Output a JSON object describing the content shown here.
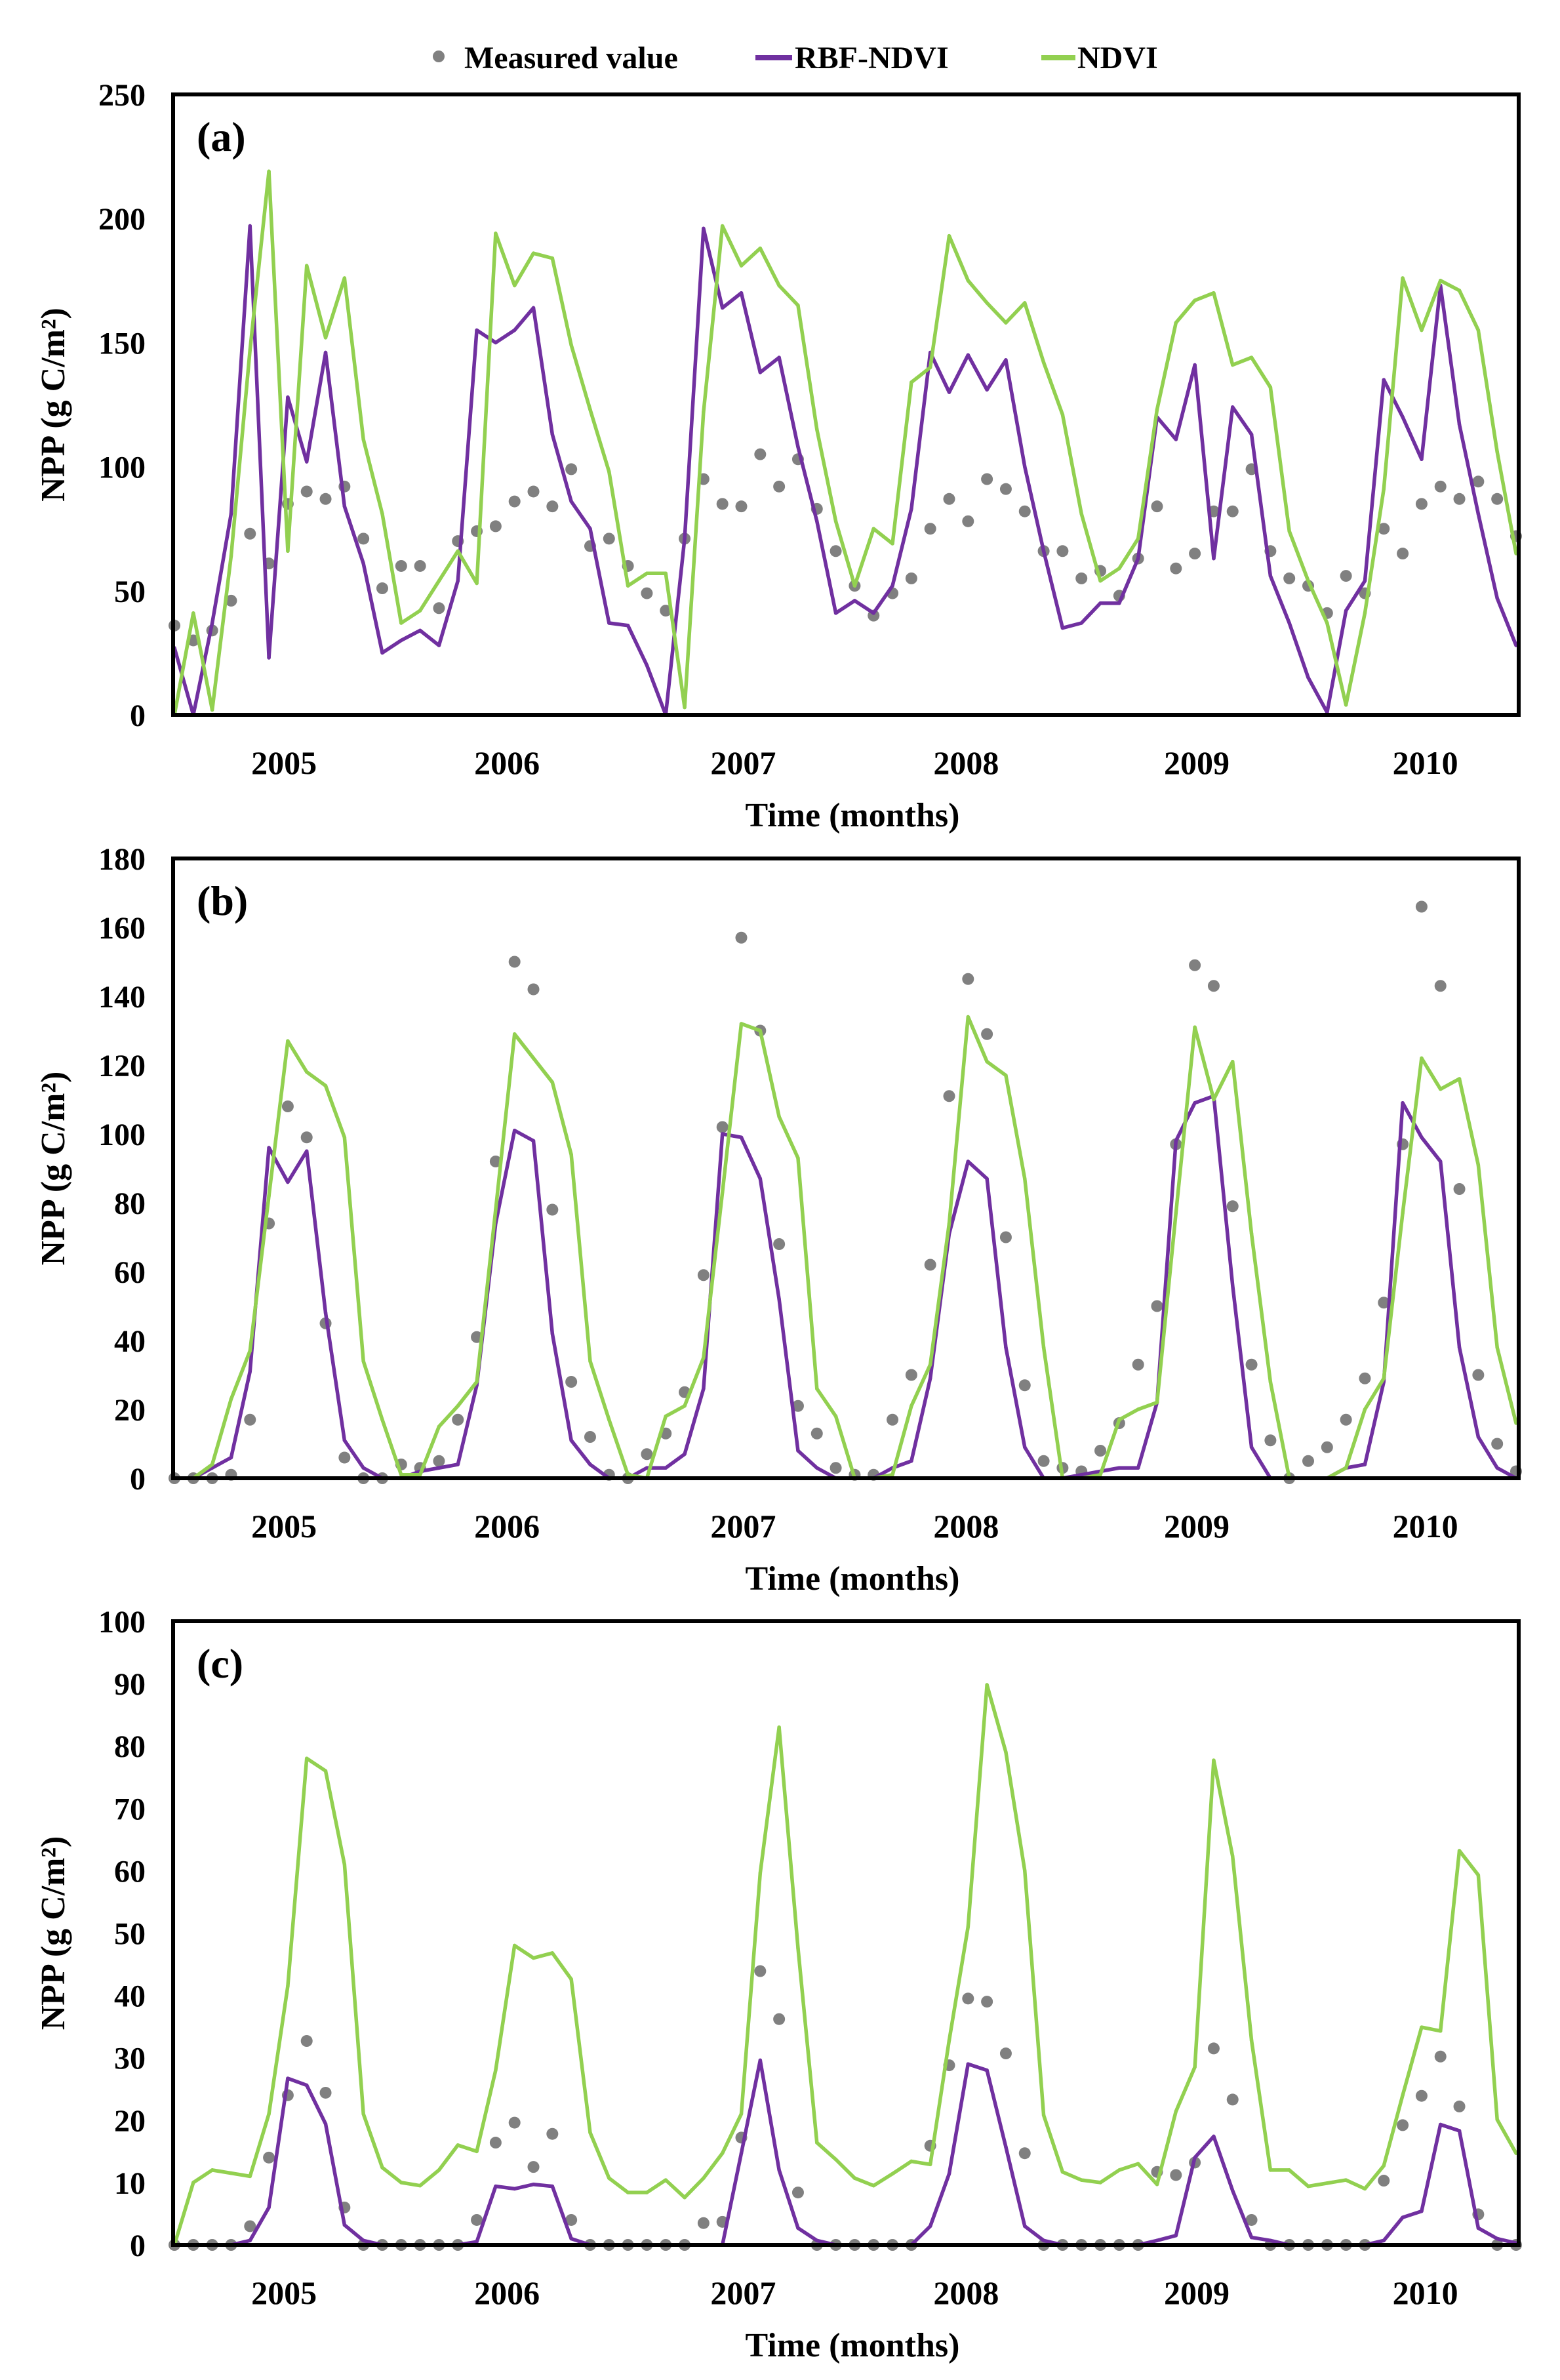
{
  "legend": {
    "measured": "Measured value",
    "rbf": "RBF-NDVI",
    "ndvi": "NDVI"
  },
  "colors": {
    "measured": "#808080",
    "rbf": "#7030A0",
    "ndvi": "#92D050"
  },
  "chart_data": [
    {
      "type": "line",
      "panel_label": "(a)",
      "title": "",
      "xlabel": "Time (months)",
      "ylabel": "NPP (g C/m²)",
      "ylim": [
        0,
        250
      ],
      "yticks": [
        0,
        50,
        100,
        150,
        200,
        250
      ],
      "x_tick_labels": [
        "2005",
        "2006",
        "2007",
        "2008",
        "2009",
        "2010"
      ],
      "grid": false,
      "legend_position": "top-center",
      "n_months": 72,
      "series": [
        {
          "name": "Measured value",
          "style": "scatter",
          "values": [
            36,
            30,
            34,
            46,
            73,
            61,
            85,
            90,
            87,
            92,
            71,
            51,
            60,
            60,
            43,
            70,
            74,
            76,
            86,
            90,
            84,
            99,
            68,
            71,
            60,
            49,
            42,
            71,
            95,
            85,
            84,
            105,
            92,
            103,
            83,
            66,
            52,
            40,
            49,
            55,
            75,
            87,
            78,
            95,
            91,
            82,
            66,
            66,
            55,
            58,
            48,
            63,
            84,
            59,
            65,
            82,
            82,
            99,
            66,
            55,
            52,
            41,
            56,
            49,
            75,
            65,
            85,
            92,
            87,
            94,
            87,
            72
          ]
        },
        {
          "name": "RBF-NDVI",
          "style": "line",
          "values": [
            27,
            0,
            37,
            81,
            197,
            23,
            128,
            102,
            146,
            84,
            61,
            25,
            30,
            34,
            28,
            54,
            155,
            150,
            155,
            164,
            113,
            86,
            75,
            37,
            36,
            20,
            0,
            71,
            196,
            164,
            170,
            138,
            144,
            108,
            78,
            41,
            46,
            41,
            52,
            83,
            146,
            130,
            145,
            131,
            143,
            100,
            66,
            35,
            37,
            45,
            45,
            63,
            120,
            111,
            141,
            63,
            124,
            113,
            56,
            37,
            15,
            1,
            42,
            54,
            135,
            120,
            103,
            173,
            117,
            81,
            47,
            28
          ]
        },
        {
          "name": "NDVI",
          "style": "line",
          "values": [
            0,
            41,
            2,
            64,
            147,
            219,
            66,
            181,
            152,
            176,
            111,
            81,
            37,
            42,
            54,
            66,
            53,
            194,
            173,
            186,
            184,
            149,
            123,
            98,
            52,
            57,
            57,
            3,
            122,
            197,
            181,
            188,
            173,
            165,
            115,
            78,
            52,
            75,
            69,
            134,
            140,
            193,
            175,
            166,
            158,
            166,
            142,
            121,
            81,
            54,
            59,
            71,
            123,
            158,
            167,
            170,
            141,
            144,
            132,
            74,
            54,
            37,
            4,
            41,
            91,
            176,
            155,
            175,
            171,
            155,
            106,
            65
          ]
        }
      ]
    },
    {
      "type": "line",
      "panel_label": "(b)",
      "title": "",
      "xlabel": "Time (months)",
      "ylabel": "NPP (g C/m²)",
      "ylim": [
        0,
        180
      ],
      "yticks": [
        0,
        20,
        40,
        60,
        80,
        100,
        120,
        140,
        160,
        180
      ],
      "x_tick_labels": [
        "2005",
        "2006",
        "2007",
        "2008",
        "2009",
        "2010"
      ],
      "grid": false,
      "n_months": 72,
      "series": [
        {
          "name": "Measured value",
          "style": "scatter",
          "values": [
            0,
            0,
            0,
            1,
            17,
            74,
            108,
            99,
            45,
            6,
            0,
            0,
            4,
            3,
            5,
            17,
            41,
            92,
            150,
            142,
            78,
            28,
            12,
            1,
            0,
            7,
            13,
            25,
            59,
            102,
            157,
            130,
            68,
            21,
            13,
            3,
            1,
            1,
            17,
            30,
            62,
            111,
            145,
            129,
            70,
            27,
            5,
            3,
            2,
            8,
            16,
            33,
            50,
            97,
            149,
            143,
            79,
            33,
            11,
            0,
            5,
            9,
            17,
            29,
            51,
            97,
            166,
            143,
            84,
            30,
            10,
            2
          ]
        },
        {
          "name": "RBF-NDVI",
          "style": "line",
          "values": [
            0,
            0,
            3,
            6,
            31,
            96,
            86,
            95,
            48,
            11,
            3,
            0,
            0,
            2,
            3,
            4,
            27,
            74,
            101,
            98,
            42,
            11,
            4,
            0,
            0,
            3,
            3,
            7,
            26,
            100,
            99,
            87,
            52,
            8,
            3,
            0,
            0,
            0,
            3,
            5,
            29,
            71,
            92,
            87,
            38,
            9,
            0,
            0,
            1,
            2,
            3,
            3,
            22,
            98,
            109,
            111,
            56,
            9,
            0,
            0,
            0,
            0,
            3,
            4,
            28,
            109,
            99,
            92,
            38,
            12,
            3,
            0
          ]
        },
        {
          "name": "NDVI",
          "style": "line",
          "values": [
            0,
            0,
            4,
            23,
            37,
            82,
            127,
            118,
            114,
            99,
            34,
            17,
            1,
            1,
            15,
            21,
            28,
            78,
            129,
            122,
            115,
            94,
            34,
            17,
            1,
            0,
            18,
            21,
            35,
            83,
            132,
            130,
            105,
            93,
            26,
            18,
            0,
            0,
            1,
            21,
            33,
            74,
            134,
            121,
            117,
            87,
            38,
            0,
            0,
            1,
            17,
            20,
            22,
            77,
            131,
            110,
            121,
            71,
            28,
            0,
            0,
            0,
            3,
            20,
            29,
            77,
            122,
            113,
            116,
            91,
            38,
            16
          ]
        }
      ]
    },
    {
      "type": "line",
      "panel_label": "(c)",
      "title": "",
      "xlabel": "Time (months)",
      "ylabel": "NPP (g C/m²)",
      "ylim": [
        0,
        100
      ],
      "yticks": [
        0,
        10,
        20,
        30,
        40,
        50,
        60,
        70,
        80,
        90,
        100
      ],
      "x_tick_labels": [
        "2005",
        "2006",
        "2007",
        "2008",
        "2009",
        "2010"
      ],
      "grid": false,
      "n_months": 72,
      "series": [
        {
          "name": "Measured value",
          "style": "scatter",
          "values": [
            0,
            0,
            0,
            0,
            3,
            14,
            24,
            32.7,
            24.4,
            6,
            0,
            0,
            0,
            0,
            0,
            0,
            4,
            16.4,
            19.6,
            12.5,
            17.8,
            4,
            0,
            0,
            0,
            0,
            0,
            0,
            3.5,
            3.7,
            17.2,
            43.9,
            36.2,
            8.4,
            0,
            0,
            0,
            0,
            0,
            0,
            15.9,
            28.8,
            39.5,
            39,
            30.7,
            14.7,
            0,
            0,
            0,
            0,
            0,
            0,
            11.7,
            11.2,
            13.2,
            31.5,
            23.3,
            4,
            0,
            0,
            0,
            0,
            0,
            0,
            10.3,
            19.2,
            23.9,
            30.2,
            22.2,
            4.9,
            0,
            0
          ]
        },
        {
          "name": "RBF-NDVI",
          "style": "line",
          "values": [
            0,
            0,
            0,
            0,
            0.7,
            6,
            26.7,
            25.6,
            19.4,
            3.2,
            0.7,
            0,
            0,
            0,
            0,
            0,
            0.5,
            9.4,
            9,
            9.7,
            9.4,
            1,
            0,
            0,
            0,
            0,
            0,
            0,
            0,
            0,
            14.7,
            29.6,
            12,
            2.7,
            0.7,
            0,
            0,
            0,
            0,
            0,
            3,
            11.4,
            29,
            28,
            15.7,
            3,
            0.7,
            0,
            0,
            0,
            0,
            0,
            0.7,
            1.5,
            14,
            17.4,
            8.7,
            1.2,
            0.7,
            0,
            0,
            0,
            0,
            0,
            0.7,
            4.4,
            5.4,
            19.3,
            18.3,
            2.7,
            1,
            0.3
          ]
        },
        {
          "name": "NDVI",
          "style": "line",
          "values": [
            0,
            10,
            12,
            11.5,
            11,
            21,
            41.5,
            78,
            76,
            61,
            21,
            12.4,
            10,
            9.5,
            12,
            16,
            15,
            28,
            48,
            46,
            46.8,
            42.6,
            18,
            10.7,
            8.4,
            8.4,
            10.4,
            7.6,
            10.7,
            14.7,
            21,
            59.6,
            83,
            47.6,
            16.4,
            13.7,
            10.7,
            9.5,
            11.4,
            13.4,
            12.9,
            32.8,
            51,
            89.8,
            79,
            60,
            20.8,
            11.7,
            10.4,
            10,
            12,
            13,
            9.7,
            21.4,
            28.5,
            77.7,
            62.3,
            32.8,
            12,
            12,
            9.4,
            9.9,
            10.4,
            9,
            12.7,
            24,
            34.9,
            34.3,
            63.2,
            59.3,
            20.1,
            14.7
          ]
        }
      ]
    }
  ]
}
